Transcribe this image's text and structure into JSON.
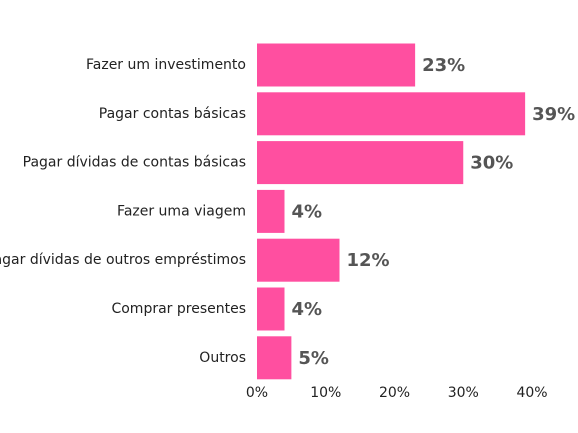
{
  "chart_data": {
    "type": "bar",
    "orientation": "horizontal",
    "categories": [
      "Fazer um investimento",
      "Pagar contas básicas",
      "Pagar dívidas de contas básicas",
      "Fazer uma viagem",
      "Pagar dívidas de outros empréstimos",
      "Comprar presentes",
      "Outros"
    ],
    "values": [
      23,
      39,
      30,
      4,
      12,
      4,
      5
    ],
    "value_labels": [
      "23%",
      "39%",
      "30%",
      "4%",
      "12%",
      "4%",
      "5%"
    ],
    "title": "",
    "xlabel": "",
    "ylabel": "",
    "xlim": [
      0,
      40
    ],
    "x_ticks": [
      0,
      10,
      20,
      30,
      40
    ],
    "x_tick_labels": [
      "0%",
      "10%",
      "20%",
      "30%",
      "40%"
    ],
    "grid": false,
    "legend": "none",
    "bar_color": "#ff4fa0"
  }
}
